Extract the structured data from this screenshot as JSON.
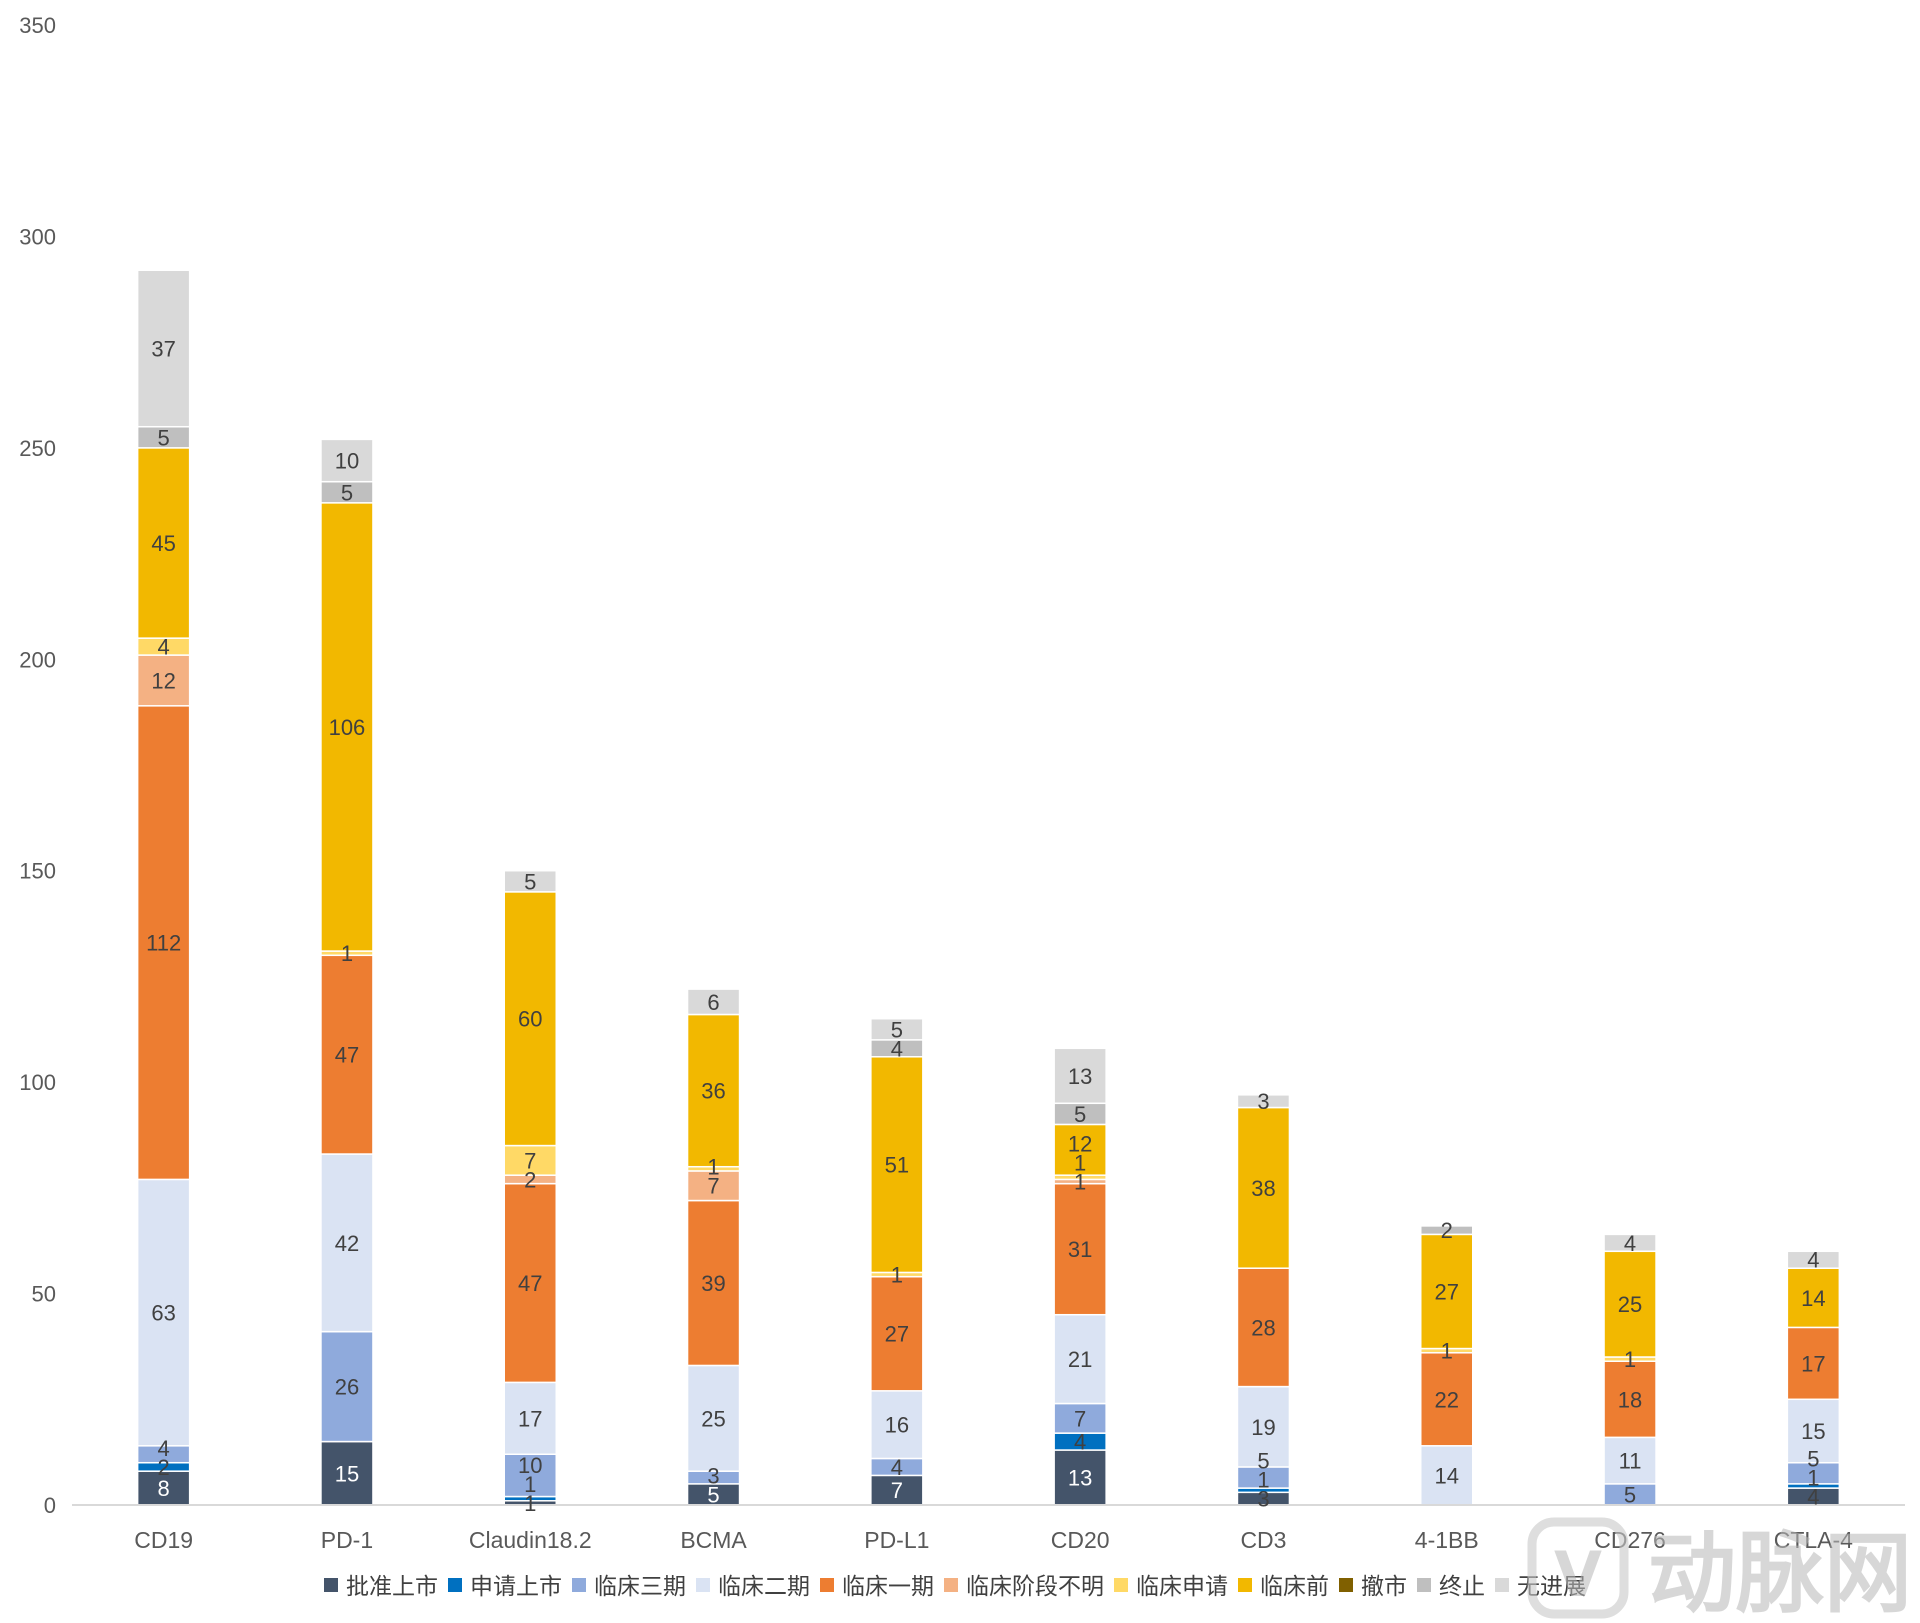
{
  "chart_data": {
    "type": "bar",
    "stacked": true,
    "categories": [
      "CD19",
      "PD-1",
      "Claudin18.2",
      "BCMA",
      "PD-L1",
      "CD20",
      "CD3",
      "4-1BB",
      "CD276",
      "CTLA-4"
    ],
    "ylim": [
      0,
      350
    ],
    "yticks": [
      0,
      50,
      100,
      150,
      200,
      250,
      300,
      350
    ],
    "grid": false,
    "legend_position": "bottom",
    "series": [
      {
        "name": "批准上市",
        "color": "#44546a",
        "values": [
          8,
          15,
          1,
          5,
          7,
          13,
          3,
          0,
          0,
          4
        ]
      },
      {
        "name": "申请上市",
        "color": "#0070c0",
        "values": [
          2,
          0,
          1,
          0,
          0,
          4,
          1,
          0,
          0,
          1
        ]
      },
      {
        "name": "临床三期",
        "color": "#8faadc",
        "values": [
          4,
          26,
          10,
          3,
          4,
          7,
          5,
          0,
          5,
          5
        ]
      },
      {
        "name": "临床二期",
        "color": "#dae3f3",
        "values": [
          63,
          42,
          17,
          25,
          16,
          21,
          19,
          14,
          11,
          15
        ]
      },
      {
        "name": "临床一期",
        "color": "#ed7d31",
        "values": [
          112,
          47,
          47,
          39,
          27,
          31,
          28,
          22,
          18,
          17
        ]
      },
      {
        "name": "临床阶段不明",
        "color": "#f4b183",
        "values": [
          12,
          0,
          2,
          7,
          0,
          1,
          0,
          0,
          0,
          0
        ]
      },
      {
        "name": "临床申请",
        "color": "#ffd966",
        "values": [
          4,
          1,
          7,
          1,
          1,
          1,
          0,
          1,
          1,
          0
        ]
      },
      {
        "name": "临床前",
        "color": "#f2b800",
        "values": [
          45,
          106,
          60,
          36,
          51,
          12,
          38,
          27,
          25,
          14
        ]
      },
      {
        "name": "撤市",
        "color": "#806000",
        "values": [
          0,
          0,
          0,
          0,
          0,
          0,
          0,
          0,
          0,
          0
        ]
      },
      {
        "name": "终止",
        "color": "#bfbfbf",
        "values": [
          5,
          5,
          0,
          0,
          4,
          5,
          0,
          2,
          0,
          0
        ]
      },
      {
        "name": "无进展",
        "color": "#d9d9d9",
        "values": [
          37,
          10,
          5,
          6,
          5,
          13,
          3,
          0,
          4,
          4
        ]
      }
    ]
  },
  "watermark": {
    "text": "动脉网"
  }
}
